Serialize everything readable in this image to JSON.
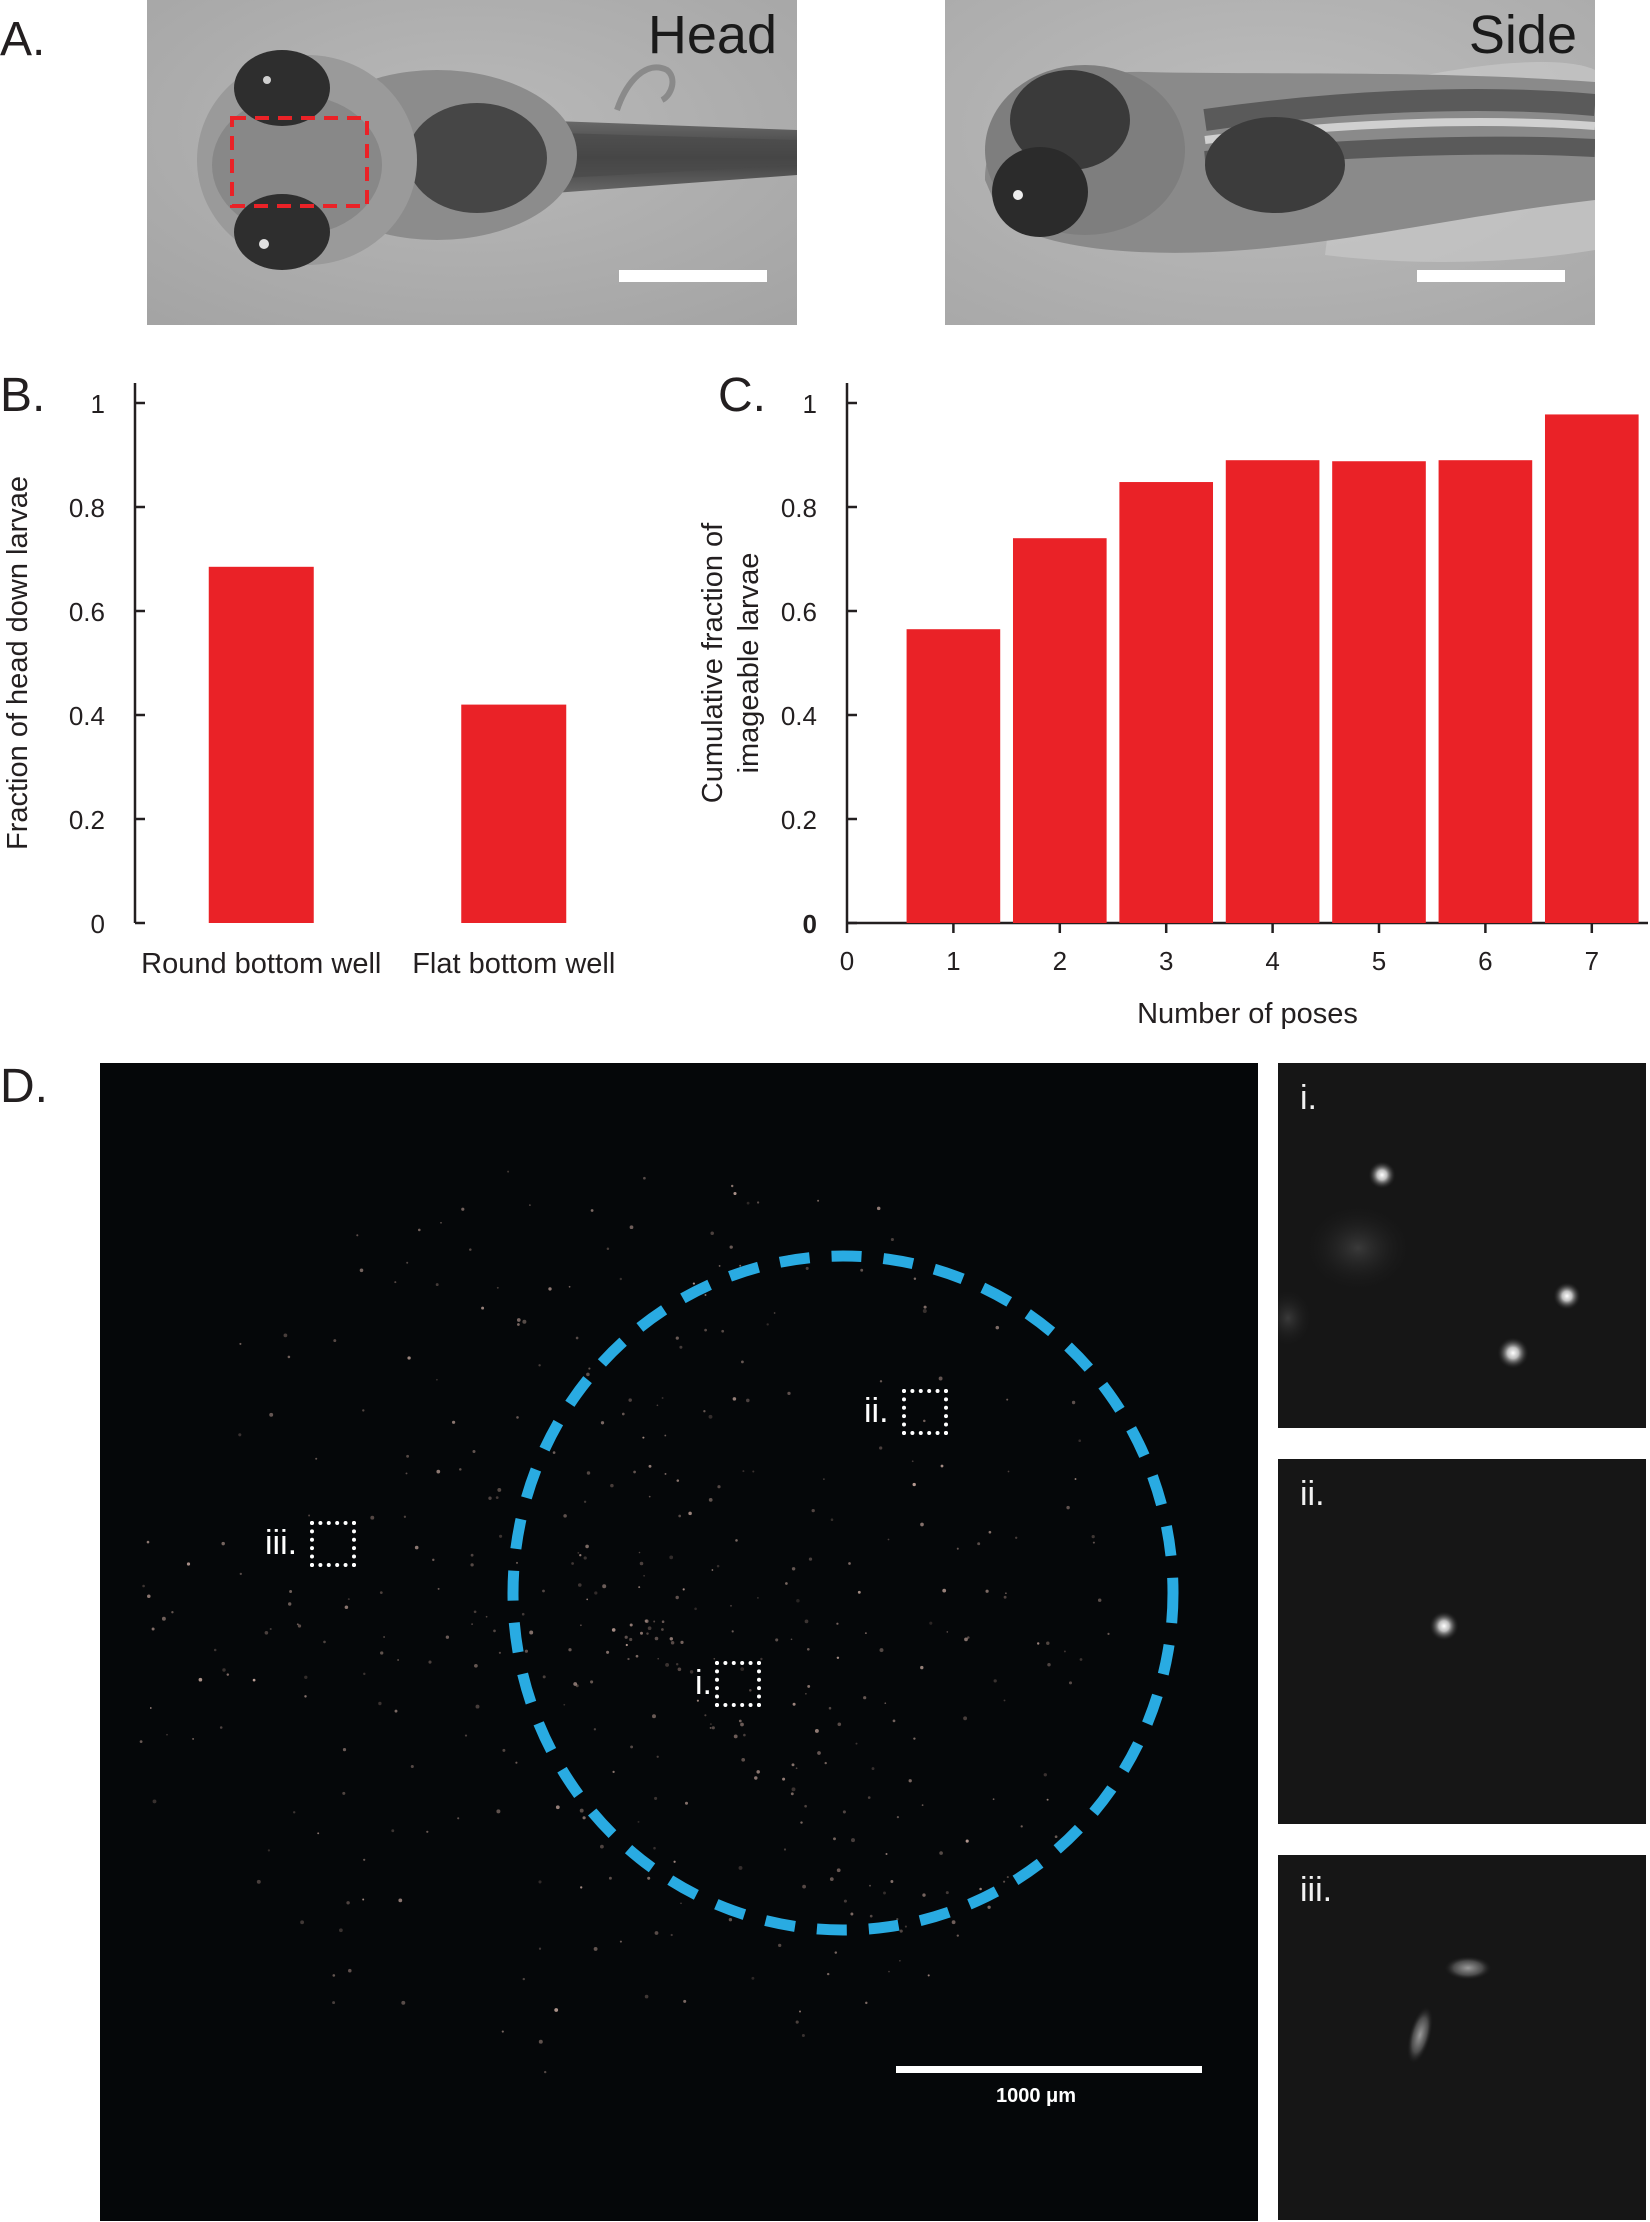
{
  "panels": {
    "a": {
      "letter": "A."
    },
    "b": {
      "letter": "B."
    },
    "c": {
      "letter": "C."
    },
    "d": {
      "letter": "D."
    }
  },
  "photos": {
    "head_label": "Head",
    "side_label": "Side"
  },
  "chart_data": [
    {
      "type": "bar",
      "panel": "B.",
      "categories": [
        "Round bottom well",
        "Flat bottom well"
      ],
      "values": [
        0.685,
        0.42
      ],
      "ylabel": "Fraction of head down larvae",
      "xlabel": "",
      "ylim": [
        0,
        1
      ],
      "yticks": [
        "0",
        "0.2",
        "0.4",
        "0.6",
        "0.8",
        "1"
      ],
      "color": "#ea2227"
    },
    {
      "type": "bar",
      "panel": "C.",
      "categories": [
        "1",
        "2",
        "3",
        "4",
        "5",
        "6",
        "7"
      ],
      "values": [
        0.565,
        0.74,
        0.848,
        0.89,
        0.888,
        0.89,
        0.978
      ],
      "ylabel": "Cumulative fraction of imageable larvae",
      "ylabel_lines": [
        "Cumulative fraction of",
        "imageable larvae"
      ],
      "xlabel": "Number of poses",
      "xlim": [
        0,
        7.5
      ],
      "ylim": [
        0,
        1
      ],
      "xticks": [
        "0",
        "1",
        "2",
        "3",
        "4",
        "5",
        "6",
        "7"
      ],
      "yticks": [
        "0",
        "0.2",
        "0.4",
        "0.6",
        "0.8",
        "1"
      ],
      "color": "#ea2227"
    }
  ],
  "microscopy": {
    "scalebar_label": "1000 μm",
    "roi_labels": {
      "i": "i.",
      "ii": "ii.",
      "iii": "iii."
    },
    "circle_color": "#29abe2",
    "insets": [
      {
        "label": "i."
      },
      {
        "label": "ii."
      },
      {
        "label": "iii."
      }
    ]
  }
}
